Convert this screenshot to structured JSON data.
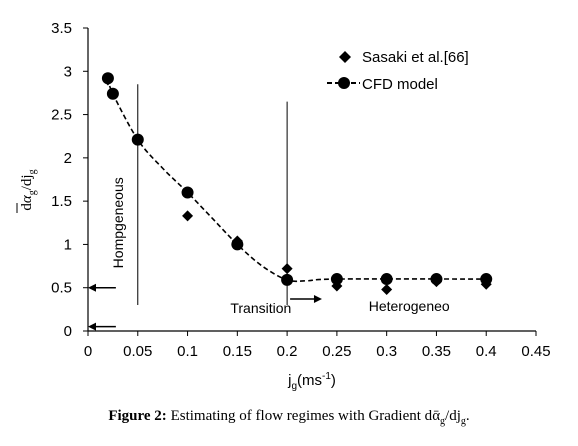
{
  "chart_data": {
    "type": "scatter",
    "xlabel": {
      "base": "j",
      "sub": "g",
      "tail": "(ms",
      "sup": "-1",
      "close": ")"
    },
    "ylabel": {
      "pre": "d",
      "alpha": "α",
      "sub": "g",
      "mid": "/dj",
      "sub2": "g"
    },
    "xlim": [
      0,
      0.45
    ],
    "ylim": [
      0,
      3.5
    ],
    "x_ticks": [
      {
        "v": 0,
        "label": "0"
      },
      {
        "v": 0.05,
        "label": "0.05"
      },
      {
        "v": 0.1,
        "label": "0.1"
      },
      {
        "v": 0.15,
        "label": "0.15"
      },
      {
        "v": 0.2,
        "label": "0.2"
      },
      {
        "v": 0.25,
        "label": "0.25"
      },
      {
        "v": 0.3,
        "label": "0.3"
      },
      {
        "v": 0.35,
        "label": "0.35"
      },
      {
        "v": 0.4,
        "label": "0.4"
      },
      {
        "v": 0.45,
        "label": "0.45"
      }
    ],
    "y_ticks": [
      {
        "v": 0,
        "label": "0"
      },
      {
        "v": 0.5,
        "label": "0.5"
      },
      {
        "v": 1,
        "label": "1"
      },
      {
        "v": 1.5,
        "label": "1.5"
      },
      {
        "v": 2,
        "label": "2"
      },
      {
        "v": 2.5,
        "label": "2.5"
      },
      {
        "v": 3,
        "label": "3"
      },
      {
        "v": 3.5,
        "label": "3.5"
      }
    ],
    "grid": false,
    "legend_position": "top-right",
    "series": [
      {
        "name": "Sasaki et al.[66]",
        "marker": "diamond",
        "line": "none",
        "color": "#000000",
        "points": [
          {
            "x": 0.02,
            "y": 2.9
          },
          {
            "x": 0.05,
            "y": 2.22
          },
          {
            "x": 0.1,
            "y": 1.33
          },
          {
            "x": 0.15,
            "y": 1.04
          },
          {
            "x": 0.2,
            "y": 0.72
          },
          {
            "x": 0.25,
            "y": 0.52
          },
          {
            "x": 0.3,
            "y": 0.48
          },
          {
            "x": 0.35,
            "y": 0.57
          },
          {
            "x": 0.4,
            "y": 0.54
          }
        ]
      },
      {
        "name": "CFD model",
        "marker": "circle",
        "line": "dashed",
        "color": "#000000",
        "points": [
          {
            "x": 0.02,
            "y": 2.92
          },
          {
            "x": 0.025,
            "y": 2.74
          },
          {
            "x": 0.05,
            "y": 2.21
          },
          {
            "x": 0.1,
            "y": 1.6
          },
          {
            "x": 0.15,
            "y": 1.0
          },
          {
            "x": 0.2,
            "y": 0.59
          },
          {
            "x": 0.25,
            "y": 0.6
          },
          {
            "x": 0.3,
            "y": 0.6
          },
          {
            "x": 0.35,
            "y": 0.6
          },
          {
            "x": 0.4,
            "y": 0.6
          }
        ]
      }
    ],
    "dashed_curve": [
      {
        "x": 0.02,
        "y": 2.92
      },
      {
        "x": 0.025,
        "y": 2.74
      },
      {
        "x": 0.05,
        "y": 2.21
      },
      {
        "x": 0.075,
        "y": 1.88
      },
      {
        "x": 0.1,
        "y": 1.6
      },
      {
        "x": 0.125,
        "y": 1.3
      },
      {
        "x": 0.15,
        "y": 1.0
      },
      {
        "x": 0.175,
        "y": 0.75
      },
      {
        "x": 0.2,
        "y": 0.59
      },
      {
        "x": 0.22,
        "y": 0.58
      },
      {
        "x": 0.25,
        "y": 0.6
      },
      {
        "x": 0.4,
        "y": 0.6
      }
    ],
    "regime_lines": [
      {
        "x": 0.05,
        "y_from": 0.3,
        "y_to": 2.85
      },
      {
        "x": 0.2,
        "y_from": 0.3,
        "y_to": 2.65
      }
    ],
    "annotations": [
      {
        "id": "hom",
        "text": "Hompgeneous",
        "x": 0.035,
        "y": 1.25,
        "rotate": -90
      },
      {
        "id": "trans",
        "text": "Transition",
        "x": 0.143,
        "y": 0.21
      },
      {
        "id": "het",
        "text": "Heterogeneo",
        "x": 0.282,
        "y": 0.23
      }
    ],
    "arrows": [
      {
        "dir": "left",
        "x_from": 0.028,
        "x_to": 0.0,
        "y": 0.5
      },
      {
        "dir": "left",
        "x_from": 0.028,
        "x_to": 0.0,
        "y": 0.05
      },
      {
        "dir": "right",
        "x_from": 0.203,
        "x_to": 0.235,
        "y": 0.37
      }
    ]
  },
  "caption": {
    "label": "Figure 2:",
    "text": "Estimating of flow regimes with Gradient d",
    "alpha": "ᾱ",
    "sub1": "g",
    "mid": "/dj",
    "sub2": "g",
    "end": "."
  }
}
